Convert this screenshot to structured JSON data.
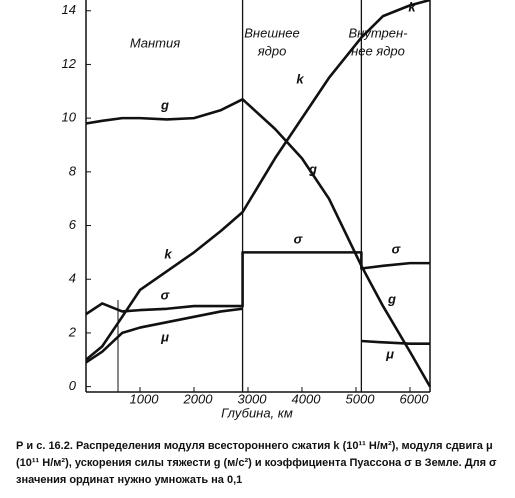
{
  "chart_data": {
    "type": "line",
    "x": [
      0,
      300,
      670,
      1000,
      1500,
      2000,
      2500,
      2900,
      2900,
      3500,
      4000,
      4500,
      5100,
      5100,
      5500,
      6000,
      6371
    ],
    "series": [
      {
        "name": "g",
        "color": "#111111",
        "values": [
          9.8,
          9.9,
          10.0,
          10.0,
          9.95,
          10.0,
          10.3,
          10.7,
          10.7,
          9.6,
          8.5,
          7.0,
          4.5,
          4.5,
          3.0,
          1.3,
          0
        ]
      },
      {
        "name": "k",
        "color": "#111111",
        "values": [
          1.0,
          1.5,
          2.6,
          3.6,
          4.3,
          5.0,
          5.8,
          6.5,
          6.5,
          8.5,
          10.0,
          11.5,
          13.0,
          13.0,
          13.8,
          14.2,
          14.4
        ]
      },
      {
        "name": "σ",
        "color": "#111111",
        "values": [
          2.7,
          3.1,
          2.8,
          2.85,
          2.9,
          3.0,
          3.0,
          3.0,
          5.0,
          5.0,
          5.0,
          5.0,
          5.0,
          4.4,
          4.5,
          4.6,
          4.6
        ]
      },
      {
        "name": "μ",
        "color": "#111111",
        "values": [
          0.9,
          1.3,
          2.0,
          2.2,
          2.4,
          2.6,
          2.8,
          2.9,
          null,
          null,
          null,
          null,
          null,
          1.7,
          1.65,
          1.6,
          1.6
        ]
      }
    ],
    "regions": [
      [
        "Мантия"
      ],
      [
        "Внешнее",
        "ядро"
      ],
      [
        "Внутрен-",
        "нее ядро"
      ]
    ],
    "boundaries": [
      2900,
      5100
    ],
    "xlabel": "Глубина, км",
    "xlim": [
      0,
      6371
    ],
    "xticks": [
      1000,
      2000,
      3000,
      4000,
      5000,
      6000
    ],
    "ylim": [
      -0.2,
      14.4
    ],
    "yticks": [
      0,
      2,
      4,
      6,
      8,
      10,
      12,
      14
    ],
    "caption": "Р и с. 16.2. Распределения модуля всестороннего сжатия k (10¹¹ Н/м²), модуля сдвига μ (10¹¹ Н/м²), ускорения силы тяжести g (м/с²) и коэффициента Пуассона σ в Земле. Для σ значения ординат нужно умножать на 0,1"
  }
}
